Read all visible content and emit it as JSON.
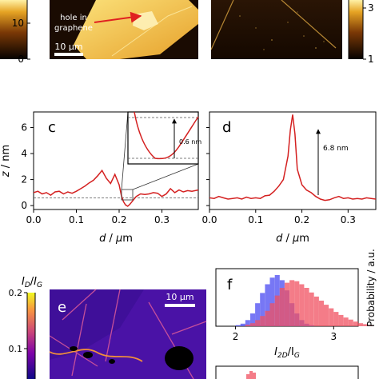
{
  "panels": {
    "a": {
      "colorbar_ticks": [
        "10",
        "0"
      ],
      "annotation": [
        "hole in",
        "graphene"
      ],
      "scale_bar": "10 μm"
    },
    "b": {
      "colorbar_ticks": [
        "3",
        "1"
      ]
    },
    "c": {
      "label": "c",
      "inset_step": "0.6 nm"
    },
    "d": {
      "label": "d",
      "peak_label": "6.8 nm"
    },
    "e": {
      "label": "e",
      "scale_bar": "10 μm",
      "colorbar_ticks": [
        "0.2",
        "0.1"
      ]
    },
    "f": {
      "label": "f",
      "xlabel_main": "I",
      "xlabel_sub": "2D",
      "xlabel_sep": "/I",
      "xlabel_sub2": "G",
      "ylabel": "Probability / a.u."
    }
  },
  "chart_data": [
    {
      "panel": "c",
      "type": "line",
      "xlabel": "d / μm",
      "ylabel": "z / nm",
      "xticks": [
        "0.0",
        "0.1",
        "0.2",
        "0.3"
      ],
      "yticks": [
        "0",
        "2",
        "4",
        "6"
      ],
      "xlim": [
        0,
        0.385
      ],
      "ylim": [
        -0.3,
        7.2
      ],
      "reference_level": 0.6,
      "x": [
        0.0,
        0.01,
        0.02,
        0.03,
        0.04,
        0.05,
        0.06,
        0.07,
        0.08,
        0.09,
        0.1,
        0.11,
        0.12,
        0.13,
        0.14,
        0.15,
        0.16,
        0.17,
        0.18,
        0.19,
        0.2,
        0.205,
        0.21,
        0.215,
        0.22,
        0.225,
        0.23,
        0.24,
        0.25,
        0.26,
        0.27,
        0.28,
        0.29,
        0.3,
        0.31,
        0.32,
        0.33,
        0.34,
        0.35,
        0.36,
        0.37,
        0.385
      ],
      "y": [
        1.0,
        1.1,
        0.9,
        1.0,
        0.8,
        1.05,
        1.1,
        0.9,
        1.05,
        0.95,
        1.1,
        1.3,
        1.5,
        1.75,
        1.95,
        2.3,
        2.7,
        2.1,
        1.7,
        2.4,
        1.6,
        0.8,
        0.3,
        0.05,
        -0.05,
        0.1,
        0.3,
        0.7,
        0.9,
        0.85,
        0.9,
        1.0,
        0.95,
        0.7,
        0.9,
        1.3,
        1.0,
        1.2,
        1.05,
        1.15,
        1.1,
        1.2
      ]
    },
    {
      "panel": "d",
      "type": "line",
      "xticks": [
        "0.0",
        "0.1",
        "0.2",
        "0.3"
      ],
      "xlabel": "d / μm",
      "xlim": [
        0,
        0.36
      ],
      "ylim": [
        -0.3,
        7.2
      ],
      "x": [
        0.0,
        0.01,
        0.02,
        0.03,
        0.04,
        0.05,
        0.06,
        0.07,
        0.08,
        0.09,
        0.1,
        0.11,
        0.12,
        0.13,
        0.14,
        0.15,
        0.16,
        0.17,
        0.175,
        0.18,
        0.185,
        0.19,
        0.2,
        0.21,
        0.22,
        0.23,
        0.24,
        0.25,
        0.26,
        0.27,
        0.28,
        0.29,
        0.3,
        0.31,
        0.32,
        0.33,
        0.34,
        0.35,
        0.36
      ],
      "y": [
        0.6,
        0.55,
        0.7,
        0.6,
        0.5,
        0.55,
        0.6,
        0.5,
        0.65,
        0.55,
        0.6,
        0.55,
        0.75,
        0.8,
        1.1,
        1.5,
        2.0,
        3.8,
        5.8,
        7.0,
        5.5,
        2.8,
        1.6,
        1.2,
        1.0,
        0.7,
        0.5,
        0.4,
        0.45,
        0.6,
        0.7,
        0.55,
        0.6,
        0.5,
        0.55,
        0.5,
        0.6,
        0.55,
        0.5
      ]
    },
    {
      "panel": "f",
      "type": "histogram",
      "xticks": [
        "2",
        "3"
      ],
      "xlim": [
        1.8,
        3.25
      ],
      "series": [
        {
          "color": "#4a4af2",
          "bin_start": 2.0,
          "bin_width": 0.05,
          "values": [
            0.02,
            0.05,
            0.12,
            0.25,
            0.45,
            0.65,
            0.82,
            0.95,
            1.0,
            0.9,
            0.7,
            0.45,
            0.25,
            0.12,
            0.05,
            0.02
          ]
        },
        {
          "color": "#f05060",
          "bin_start": 2.1,
          "bin_width": 0.05,
          "values": [
            0.03,
            0.06,
            0.12,
            0.2,
            0.3,
            0.45,
            0.6,
            0.75,
            0.85,
            0.9,
            0.88,
            0.82,
            0.75,
            0.66,
            0.58,
            0.5,
            0.42,
            0.35,
            0.28,
            0.22,
            0.17,
            0.13,
            0.09,
            0.06,
            0.04,
            0.02
          ]
        }
      ]
    }
  ]
}
